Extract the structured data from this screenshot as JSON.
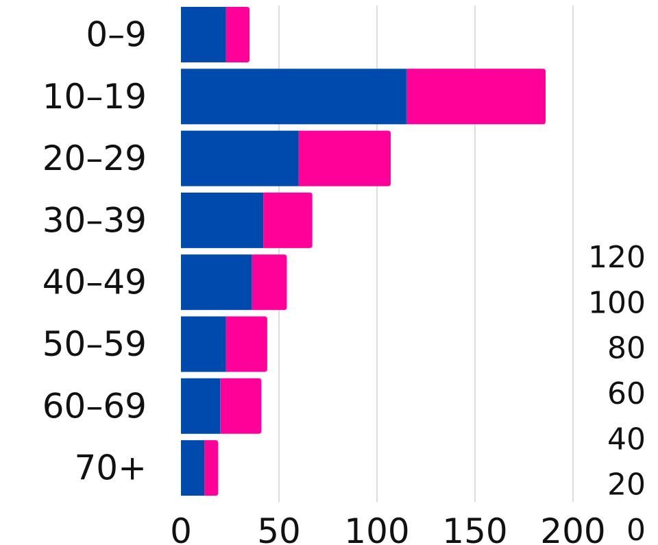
{
  "chart_data": {
    "type": "bar",
    "orientation": "horizontal",
    "stacked": true,
    "categories": [
      "0–9",
      "10–19",
      "20–29",
      "30–39",
      "40–49",
      "50–59",
      "60–69",
      "70+"
    ],
    "series": [
      {
        "values": [
          23,
          115,
          60,
          42,
          36,
          23,
          20,
          12
        ]
      },
      {
        "values": [
          12,
          71,
          47,
          25,
          18,
          21,
          21,
          7
        ]
      }
    ],
    "colors": [
      "#004aad",
      "#ff0099"
    ],
    "xlim": [
      0,
      200
    ],
    "x_ticks": [
      "0",
      "50",
      "100",
      "150",
      "200"
    ],
    "grid": true,
    "right_axis_labels": [
      "120",
      "100",
      "80",
      "60",
      "40",
      "20",
      "0"
    ]
  }
}
